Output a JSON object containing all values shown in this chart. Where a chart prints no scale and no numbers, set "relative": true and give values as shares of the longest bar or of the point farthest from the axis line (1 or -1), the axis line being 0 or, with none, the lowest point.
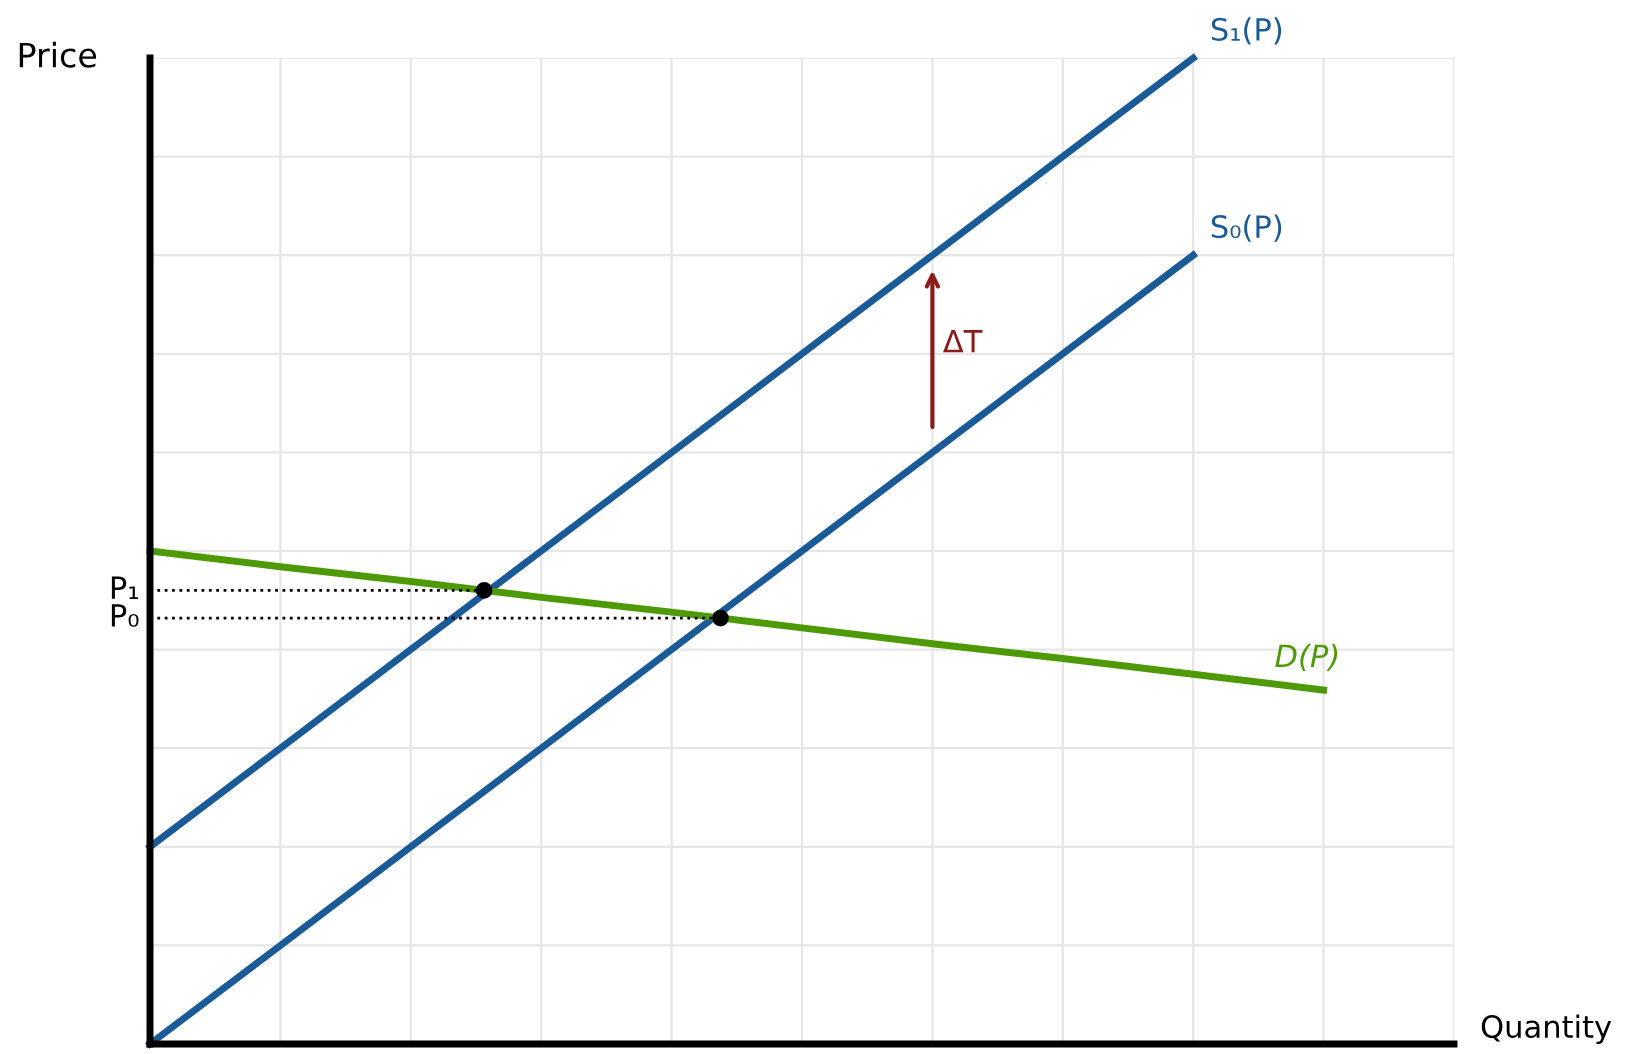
{
  "chart_data": {
    "type": "line",
    "relative": true,
    "xlabel": "Quantity",
    "ylabel": "Price",
    "categories": [
      null,
      null,
      null,
      null,
      null,
      null,
      null,
      null,
      null,
      null,
      null
    ],
    "series": [
      {
        "name": "S₁(P)",
        "color": "#1a5a96",
        "values": [
          0.2,
          0.3,
          0.4,
          0.5,
          0.6,
          0.7,
          0.8,
          0.9,
          1.0,
          null,
          null
        ]
      },
      {
        "name": "S₀(P)",
        "color": "#1a5a96",
        "values": [
          0.0,
          0.1,
          0.2,
          0.3,
          0.4,
          0.5,
          0.6,
          0.7,
          0.8,
          null,
          null
        ]
      },
      {
        "name": "D(P)",
        "color": "#4d9a06",
        "values": [
          0.5,
          0.484,
          0.469,
          0.453,
          0.438,
          0.422,
          0.406,
          0.391,
          0.375,
          0.359,
          null
        ]
      }
    ],
    "ref_lines": [
      {
        "axis": "y",
        "value": 0.46,
        "label": "P₁",
        "line_style": "dotted",
        "color": "#000000"
      },
      {
        "axis": "y",
        "value": 0.432,
        "label": "P₀",
        "line_style": "dotted",
        "color": "#000000"
      }
    ],
    "annotations": [
      "ΔT"
    ],
    "grid": true,
    "legend": false
  }
}
